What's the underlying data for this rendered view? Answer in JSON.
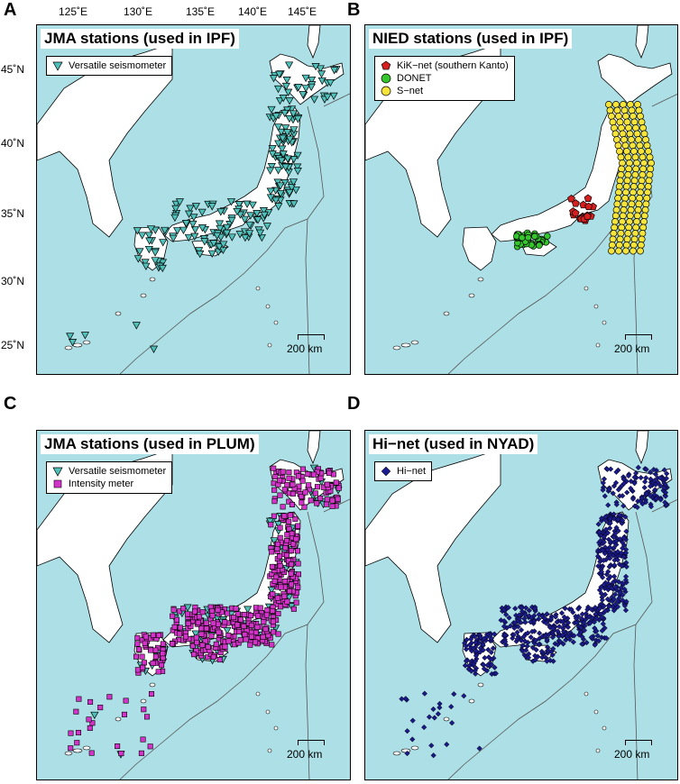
{
  "panels": [
    {
      "letter": "A",
      "title": "JMA stations (used in IPF)",
      "legend": [
        {
          "label": "Versatile seismometer",
          "symbol": "triangle-icon",
          "color": "#4fc1ba"
        }
      ],
      "scale_label": "200 km"
    },
    {
      "letter": "B",
      "title": "NIED stations (used in IPF)",
      "legend": [
        {
          "label": "KiK−net (southern Kanto)",
          "symbol": "pentagon-icon",
          "color": "#d61f1f"
        },
        {
          "label": "DONET",
          "symbol": "circle-icon",
          "color": "#35c62e"
        },
        {
          "label": "S−net",
          "symbol": "circle-icon",
          "color": "#f6e43a"
        }
      ],
      "scale_label": "200 km"
    },
    {
      "letter": "C",
      "title": "JMA stations (used in PLUM)",
      "legend": [
        {
          "label": "Versatile seismometer",
          "symbol": "triangle-icon",
          "color": "#4fc1ba"
        },
        {
          "label": "Intensity meter",
          "symbol": "square-icon",
          "color": "#d433c9"
        }
      ],
      "scale_label": "200 km"
    },
    {
      "letter": "D",
      "title": "Hi−net (used in NYAD)",
      "legend": [
        {
          "label": "Hi−net",
          "symbol": "diamond-icon",
          "color": "#1a1a8c"
        }
      ],
      "scale_label": "200 km"
    }
  ],
  "lon_labels": [
    "125˚E",
    "130˚E",
    "135˚E",
    "140˚E",
    "145˚E"
  ],
  "lat_labels": [
    "45˚N",
    "40˚N",
    "35˚N",
    "30˚N",
    "25˚N"
  ],
  "colors": {
    "sea": "#ade0e6",
    "land": "#ffffff",
    "plate_boundary": "#555555"
  }
}
